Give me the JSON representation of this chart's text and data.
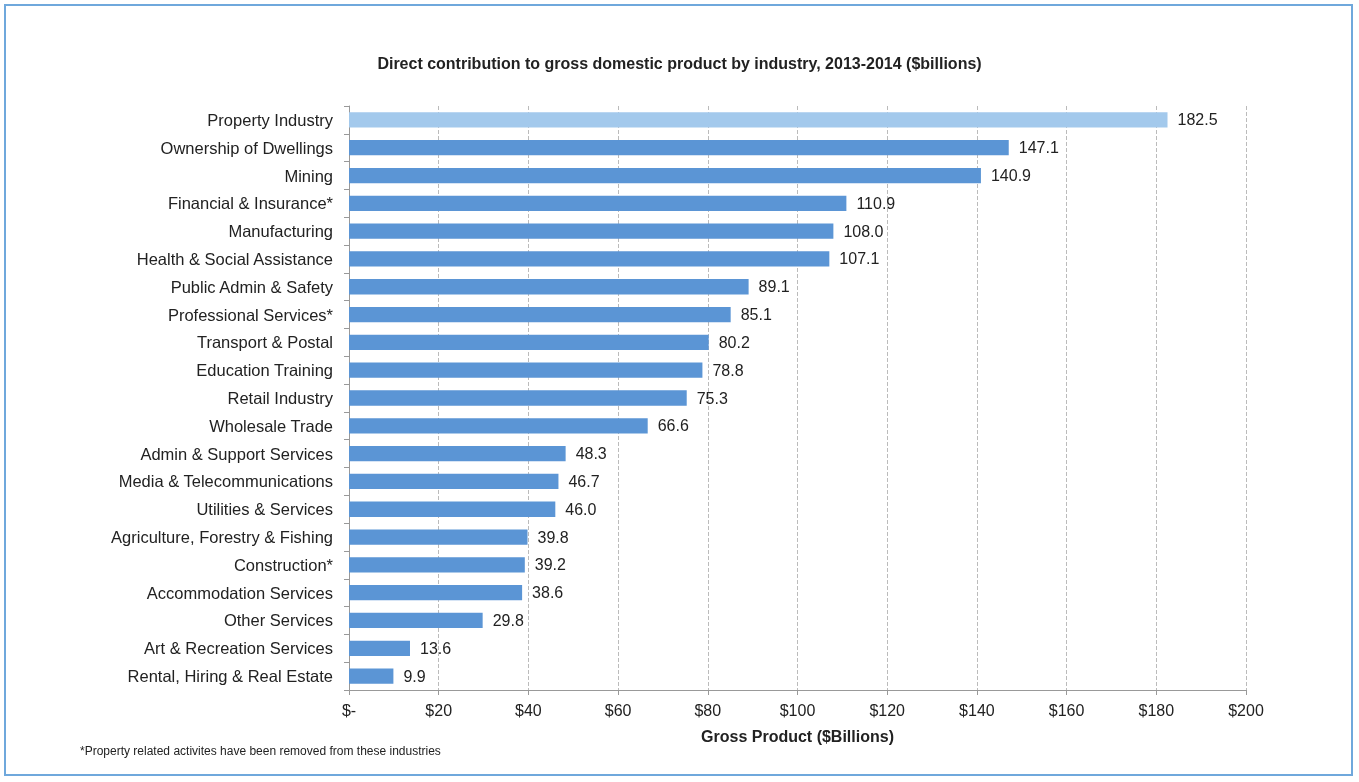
{
  "chart_data": {
    "type": "bar",
    "orientation": "horizontal",
    "title": "Direct contribution to gross domestic product by industry, 2013-2014 ($billions)",
    "xlabel": "Gross Product ($Billions)",
    "categories": [
      "Property Industry",
      "Ownership of Dwellings",
      "Mining",
      "Financial & Insurance*",
      "Manufacturing",
      "Health & Social Assistance",
      "Public Admin & Safety",
      "Professional Services*",
      "Transport & Postal",
      "Education Training",
      "Retail Industry",
      "Wholesale Trade",
      "Admin & Support Services",
      "Media & Telecommunications",
      "Utilities & Services",
      "Agriculture, Forestry & Fishing",
      "Construction*",
      "Accommodation Services",
      "Other Services",
      "Art & Recreation Services",
      "Rental, Hiring & Real Estate"
    ],
    "values": [
      182.5,
      147.1,
      140.9,
      110.9,
      108.0,
      107.1,
      89.1,
      85.1,
      80.2,
      78.8,
      75.3,
      66.6,
      48.3,
      46.7,
      46.0,
      39.8,
      39.2,
      38.6,
      29.8,
      13.6,
      9.9
    ],
    "value_labels": [
      "182.5",
      "147.1",
      "140.9",
      "110.9",
      "108.0",
      "107.1",
      "89.1",
      "85.1",
      "80.2",
      "78.8",
      "75.3",
      "66.6",
      "48.3",
      "46.7",
      "46.0",
      "39.8",
      "39.2",
      "38.6",
      "29.8",
      "13.6",
      "9.9"
    ],
    "colors": [
      "#a3c9ec",
      "#5b95d5",
      "#5b95d5",
      "#5b95d5",
      "#5b95d5",
      "#5b95d5",
      "#5b95d5",
      "#5b95d5",
      "#5b95d5",
      "#5b95d5",
      "#5b95d5",
      "#5b95d5",
      "#5b95d5",
      "#5b95d5",
      "#5b95d5",
      "#5b95d5",
      "#5b95d5",
      "#5b95d5",
      "#5b95d5",
      "#5b95d5",
      "#5b95d5"
    ],
    "xlim": [
      0,
      200
    ],
    "xticks": [
      {
        "value": 0,
        "label": "$-"
      },
      {
        "value": 20,
        "label": "$20"
      },
      {
        "value": 40,
        "label": "$40"
      },
      {
        "value": 60,
        "label": "$60"
      },
      {
        "value": 80,
        "label": "$80"
      },
      {
        "value": 100,
        "label": "$100"
      },
      {
        "value": 120,
        "label": "$120"
      },
      {
        "value": 140,
        "label": "$140"
      },
      {
        "value": 160,
        "label": "$160"
      },
      {
        "value": 180,
        "label": "$180"
      },
      {
        "value": 200,
        "label": "$200"
      }
    ],
    "grid": "x",
    "annotations": [
      "*Property related activites have been removed from these industries"
    ]
  }
}
